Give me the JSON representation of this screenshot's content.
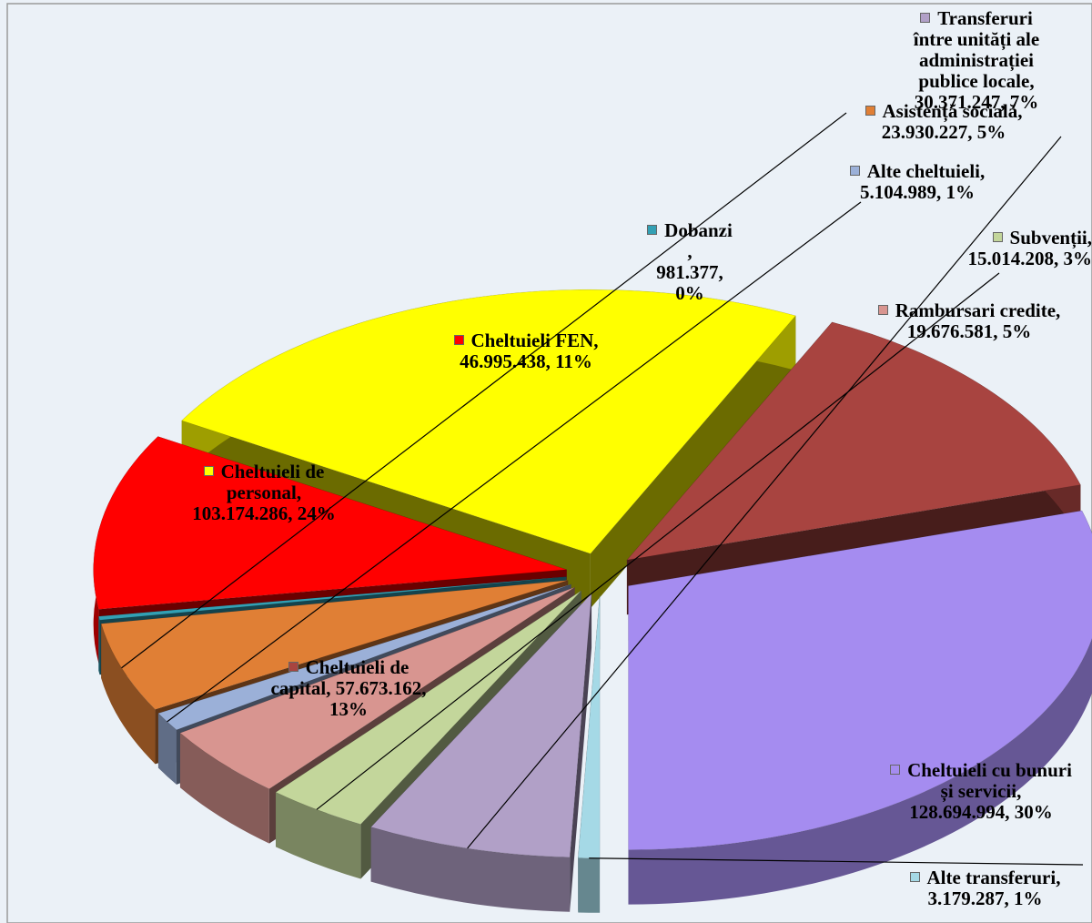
{
  "colors": {
    "background": "#ebf1f7",
    "frame": "#9a9a9a",
    "leader": "#000000"
  },
  "chart_data": {
    "type": "pie",
    "title": "",
    "style": "3d-exploded",
    "legend": "none",
    "slices": [
      {
        "name": "Cheltuieli cu bunuri și servicii",
        "value": 128694994,
        "percent": "30%",
        "label_value": "128.694.994",
        "color": "#a58cf0"
      },
      {
        "name": "Cheltuieli de capital",
        "value": 57673162,
        "percent": "13%",
        "label_value": "57.673.162",
        "color": "#a84440"
      },
      {
        "name": "Cheltuieli de personal",
        "value": 103174286,
        "percent": "24%",
        "label_value": "103.174.286",
        "color": "#ffff00"
      },
      {
        "name": "Cheltuieli FEN",
        "value": 46995438,
        "percent": "11%",
        "label_value": "46.995.438",
        "color": "#ff0000"
      },
      {
        "name": "Dobanzi",
        "value": 981377,
        "percent": "0%",
        "label_value": "981.377",
        "color": "#33a0b4"
      },
      {
        "name": "Asistență socială",
        "value": 23930227,
        "percent": "5%",
        "label_value": "23.930.227",
        "color": "#e07f35"
      },
      {
        "name": "Alte cheltuieli",
        "value": 5104989,
        "percent": "1%",
        "label_value": "5.104.989",
        "color": "#9bb0d8"
      },
      {
        "name": "Rambursari credite",
        "value": 19676581,
        "percent": "5%",
        "label_value": "19.676.581",
        "color": "#d89590"
      },
      {
        "name": "Subvenții",
        "value": 15014208,
        "percent": "3%",
        "label_value": "15.014.208",
        "color": "#c3d69b"
      },
      {
        "name": "Transferuri între unități ale administrației publice locale",
        "value": 30371247,
        "percent": "7%",
        "label_value": "30.371.247",
        "color": "#b1a0c7"
      },
      {
        "name": "Alte transferuri",
        "value": 3179287,
        "percent": "1%",
        "label_value": "3.179.287",
        "color": "#a5d9e6"
      }
    ]
  },
  "labels": {
    "bunuri": {
      "lines": [
        "Cheltuieli cu bunuri",
        "și servicii,",
        "128.694.994, 30%"
      ]
    },
    "capital": {
      "lines": [
        "Cheltuieli de",
        "capital, 57.673.162,",
        "13%"
      ]
    },
    "personal": {
      "lines": [
        "Cheltuieli de",
        "personal,",
        "103.174.286, 24%"
      ]
    },
    "fen": {
      "lines": [
        "Cheltuieli FEN,",
        "46.995.438, 11%"
      ]
    },
    "dobanzi": {
      "lines": [
        "Dobanzi",
        ",",
        "981.377,",
        "0%"
      ]
    },
    "asistenta": {
      "lines": [
        "Asistență socială,",
        "23.930.227, 5%"
      ]
    },
    "alte_cheltuieli": {
      "lines": [
        "Alte cheltuieli,",
        "5.104.989, 1%"
      ]
    },
    "rambursari": {
      "lines": [
        "Rambursari credite,",
        "19.676.581, 5%"
      ]
    },
    "subventii": {
      "lines": [
        "Subvenții,",
        "15.014.208, 3%"
      ]
    },
    "transferuri": {
      "lines": [
        "Transferuri",
        "între unități ale",
        "administrației",
        "publice locale,",
        "30.371.247, 7%"
      ]
    },
    "alte_transferuri": {
      "lines": [
        "Alte transferuri,",
        "3.179.287, 1%"
      ]
    }
  }
}
